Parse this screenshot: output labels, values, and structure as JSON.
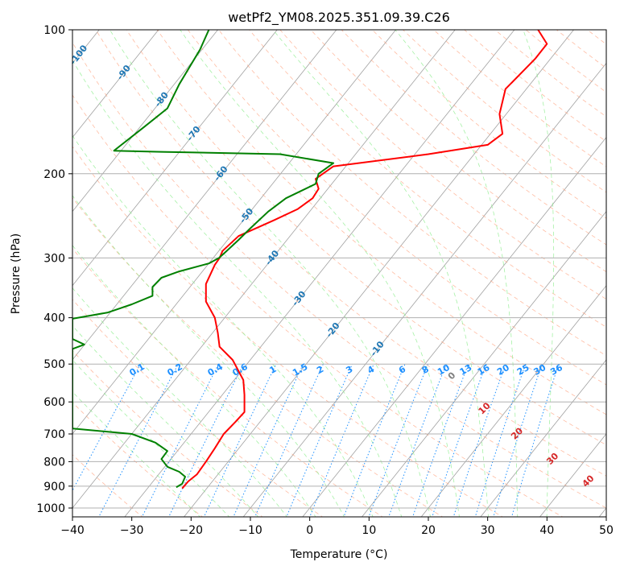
{
  "chart_data": {
    "type": "line",
    "title": "wetPf2_YM08.2025.351.09.39.C26",
    "xlabel": "Temperature (°C)",
    "ylabel": "Pressure (hPa)",
    "xlim": [
      -40,
      50
    ],
    "ylim": [
      1050,
      100
    ],
    "y_scale": "log",
    "grid": true,
    "x_ticks": [
      -40,
      -30,
      -20,
      -10,
      0,
      10,
      20,
      30,
      40,
      50
    ],
    "y_ticks": [
      100,
      200,
      300,
      400,
      500,
      600,
      700,
      800,
      900,
      1000
    ],
    "series": [
      {
        "color": "#ff0000",
        "points": [
          [
            -21.5,
            910
          ],
          [
            -20.5,
            880
          ],
          [
            -19,
            850
          ],
          [
            -17.5,
            800
          ],
          [
            -16,
            750
          ],
          [
            -14.5,
            700
          ],
          [
            -12.5,
            660
          ],
          [
            -11,
            630
          ],
          [
            -11,
            580
          ],
          [
            -11.2,
            540
          ],
          [
            -13,
            490
          ],
          [
            -15.2,
            460
          ],
          [
            -15.5,
            430
          ],
          [
            -16,
            400
          ],
          [
            -17.5,
            370
          ],
          [
            -17.5,
            340
          ],
          [
            -16,
            310
          ],
          [
            -15.2,
            300
          ],
          [
            -14.7,
            290
          ],
          [
            -12,
            270
          ],
          [
            -6,
            250
          ],
          [
            -2,
            237
          ],
          [
            0.5,
            225
          ],
          [
            1.5,
            215
          ],
          [
            1,
            205
          ],
          [
            4,
            193
          ],
          [
            20,
            182
          ],
          [
            30,
            174
          ],
          [
            32.5,
            165
          ],
          [
            32,
            150
          ],
          [
            33,
            133
          ],
          [
            38,
            115
          ],
          [
            40,
            107
          ],
          [
            38.5,
            100
          ]
        ]
      },
      {
        "color": "#008000",
        "points": [
          [
            -22.5,
            905
          ],
          [
            -21.5,
            890
          ],
          [
            -21,
            860
          ],
          [
            -22,
            840
          ],
          [
            -24,
            820
          ],
          [
            -25,
            790
          ],
          [
            -24,
            760
          ],
          [
            -26,
            730
          ],
          [
            -30,
            700
          ],
          [
            -40,
            682
          ],
          [
            -40,
            465
          ],
          [
            -38,
            455
          ],
          [
            -40,
            443
          ],
          [
            -40,
            402
          ],
          [
            -34,
            390
          ],
          [
            -30,
            375
          ],
          [
            -26.5,
            360
          ],
          [
            -26.5,
            345
          ],
          [
            -25,
            330
          ],
          [
            -22,
            320
          ],
          [
            -17,
            308
          ],
          [
            -15.3,
            300
          ],
          [
            -14,
            290
          ],
          [
            -12,
            275
          ],
          [
            -10,
            260
          ],
          [
            -7,
            240
          ],
          [
            -4,
            225
          ],
          [
            1,
            210
          ],
          [
            1.5,
            200
          ],
          [
            4,
            190
          ],
          [
            -5,
            182
          ],
          [
            -25,
            180
          ],
          [
            -33,
            179
          ],
          [
            -32,
            175
          ],
          [
            -28,
            160
          ],
          [
            -24,
            146
          ],
          [
            -22,
            130
          ],
          [
            -18.5,
            110
          ],
          [
            -17,
            100
          ]
        ]
      }
    ],
    "isotherm_labels": [
      "-100",
      "-90",
      "-80",
      "-70",
      "-60",
      "-50",
      "-40",
      "-30",
      "-20",
      "-10"
    ],
    "isotherm_label_color": "#1f77b4",
    "mixing_ratio_labels": [
      "0.1",
      "0.2",
      "0.4",
      "0.6",
      "1",
      "1.5",
      "2",
      "3",
      "4",
      "6",
      "8",
      "10",
      "13",
      "16",
      "20",
      "25",
      "30",
      "36"
    ],
    "mixing_ratio_color": "#1e90ff",
    "dry_adiabat_labels": [
      "0",
      "10",
      "20",
      "30",
      "40"
    ],
    "dry_adiabat_label_colors": [
      "#808080",
      "#d62728",
      "#d62728",
      "#d62728",
      "#d62728"
    ],
    "background_line_colors": {
      "skewed_isotherm": "#a0a0a0",
      "dry_adiabat": "#ffa07a",
      "moist_adiabat": "#90ee90",
      "mixing_ratio": "#1e90ff"
    }
  }
}
